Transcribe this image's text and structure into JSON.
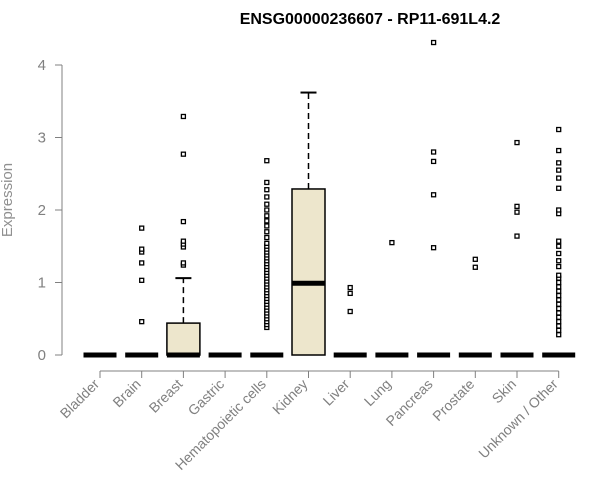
{
  "chart_data": {
    "type": "box",
    "title": "ENSG00000236607 - RP11-691L4.2",
    "xlabel": "",
    "ylabel": "Expression",
    "ylim": [
      0,
      4.4
    ],
    "yticks": [
      0,
      1,
      2,
      3,
      4
    ],
    "categories": [
      "Bladder",
      "Brain",
      "Breast",
      "Gastric",
      "Hematopoietic cells",
      "Kidney",
      "Liver",
      "Lung",
      "Pancreas",
      "Prostate",
      "Skin",
      "Unknown / Other"
    ],
    "boxes": [
      {
        "category": "Bladder",
        "whisker_low": 0,
        "q1": 0,
        "median": 0,
        "q3": 0,
        "whisker_high": 0,
        "outliers": []
      },
      {
        "category": "Brain",
        "whisker_low": 0,
        "q1": 0,
        "median": 0,
        "q3": 0,
        "whisker_high": 0,
        "outliers": [
          0.46,
          1.03,
          1.27,
          1.42,
          1.46,
          1.75
        ]
      },
      {
        "category": "Breast",
        "whisker_low": 0,
        "q1": 0,
        "median": 0,
        "q3": 0.44,
        "whisker_high": 1.06,
        "outliers": [
          1.24,
          1.27,
          1.49,
          1.53,
          1.57,
          1.84,
          2.77,
          3.29
        ]
      },
      {
        "category": "Gastric",
        "whisker_low": 0,
        "q1": 0,
        "median": 0,
        "q3": 0,
        "whisker_high": 0,
        "outliers": []
      },
      {
        "category": "Hematopoietic cells",
        "whisker_low": 0,
        "q1": 0,
        "median": 0,
        "q3": 0,
        "whisker_high": 0,
        "outliers": [
          0.38,
          0.42,
          0.46,
          0.5,
          0.54,
          0.58,
          0.62,
          0.66,
          0.7,
          0.74,
          0.78,
          0.82,
          0.86,
          0.9,
          0.94,
          0.98,
          1.02,
          1.06,
          1.1,
          1.14,
          1.18,
          1.22,
          1.26,
          1.3,
          1.34,
          1.38,
          1.42,
          1.46,
          1.5,
          1.54,
          1.62,
          1.7,
          1.78,
          1.85,
          1.92,
          2.0,
          2.08,
          2.18,
          2.28,
          2.38,
          2.68
        ]
      },
      {
        "category": "Kidney",
        "whisker_low": 0,
        "q1": 0,
        "median": 0.99,
        "q3": 2.29,
        "whisker_high": 3.62,
        "outliers": []
      },
      {
        "category": "Liver",
        "whisker_low": 0,
        "q1": 0,
        "median": 0,
        "q3": 0,
        "whisker_high": 0,
        "outliers": [
          0.6,
          0.85,
          0.93
        ]
      },
      {
        "category": "Lung",
        "whisker_low": 0,
        "q1": 0,
        "median": 0,
        "q3": 0,
        "whisker_high": 0,
        "outliers": [
          1.55
        ]
      },
      {
        "category": "Pancreas",
        "whisker_low": 0,
        "q1": 0,
        "median": 0,
        "q3": 0,
        "whisker_high": 0,
        "outliers": [
          1.48,
          2.21,
          2.67,
          2.8,
          4.31
        ]
      },
      {
        "category": "Prostate",
        "whisker_low": 0,
        "q1": 0,
        "median": 0,
        "q3": 0,
        "whisker_high": 0,
        "outliers": [
          1.21,
          1.32
        ]
      },
      {
        "category": "Skin",
        "whisker_low": 0,
        "q1": 0,
        "median": 0,
        "q3": 0,
        "whisker_high": 0,
        "outliers": [
          1.64,
          1.97,
          2.05,
          2.93
        ]
      },
      {
        "category": "Unknown / Other",
        "whisker_low": 0,
        "q1": 0,
        "median": 0,
        "q3": 0,
        "whisker_high": 0,
        "outliers": [
          0.28,
          0.34,
          0.4,
          0.46,
          0.52,
          0.58,
          0.64,
          0.7,
          0.76,
          0.82,
          0.88,
          0.94,
          1.0,
          1.06,
          1.1,
          1.22,
          1.3,
          1.4,
          1.5,
          1.57,
          1.95,
          2.0,
          2.3,
          2.44,
          2.55,
          2.65,
          2.82,
          3.11
        ]
      }
    ],
    "colors": {
      "box_fill": "#EDE6CC",
      "stroke": "#000000",
      "axis": "#808080",
      "tick_text": "#808080",
      "ylabel_text": "#909090"
    },
    "grid": false,
    "legend": "none"
  }
}
